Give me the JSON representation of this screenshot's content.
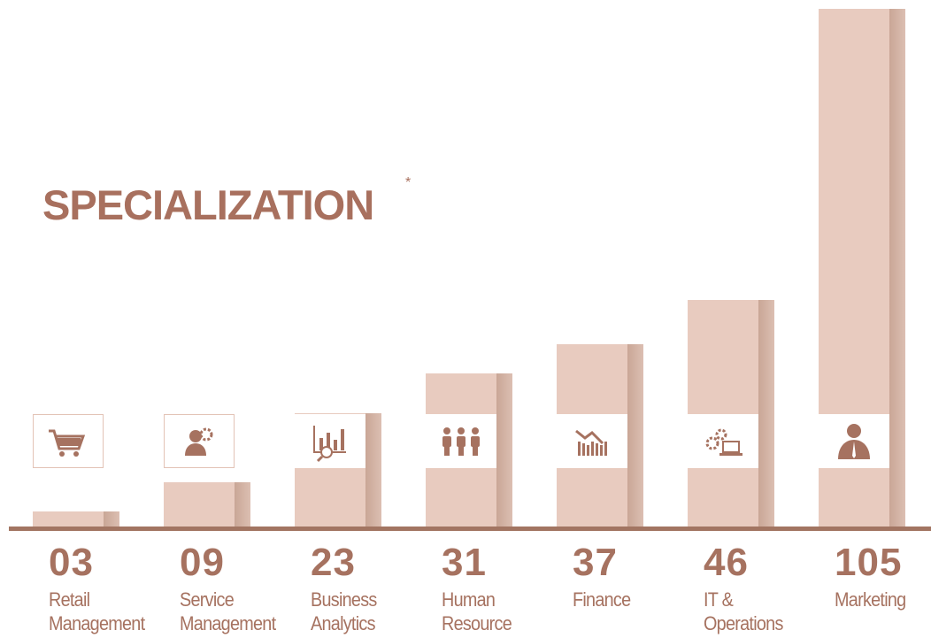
{
  "chart_data": {
    "type": "bar",
    "title": "SPECIALIZATION",
    "title_mark": "*",
    "categories": [
      "Retail Management",
      "Service Management",
      "Business Analytics",
      "Human Resource",
      "Finance",
      "IT & Operations",
      "Marketing"
    ],
    "values": [
      3,
      9,
      23,
      31,
      37,
      46,
      105
    ],
    "value_labels": [
      "03",
      "09",
      "23",
      "31",
      "37",
      "46",
      "105"
    ],
    "color": "#e8cbbf"
  }
}
